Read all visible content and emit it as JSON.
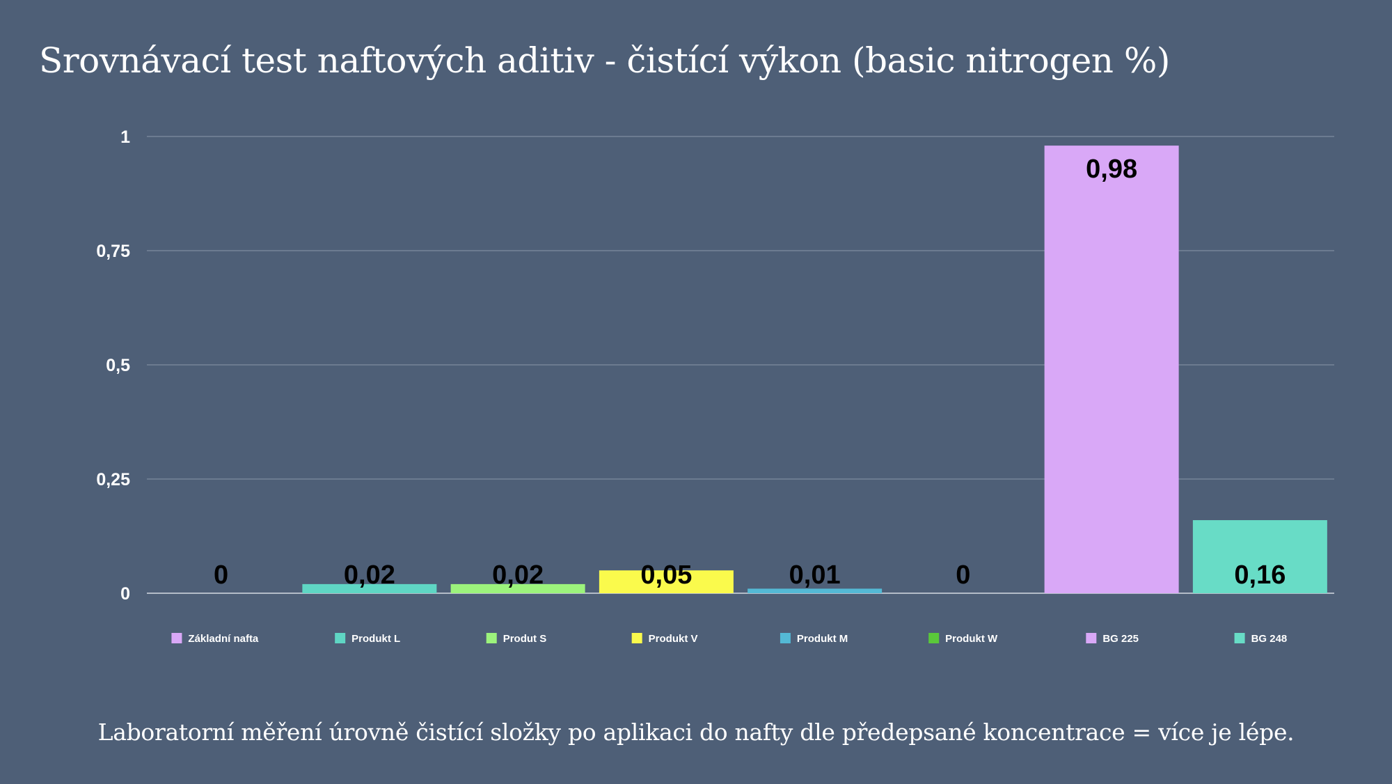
{
  "chart_data": {
    "type": "bar",
    "title": "Srovnávací test naftových aditiv - čistící výkon (basic nitrogen %)",
    "xlabel": "",
    "ylabel": "",
    "ylim": [
      0,
      1
    ],
    "yticks": [
      "0",
      "0,25",
      "0,5",
      "0,75",
      "1"
    ],
    "ytick_values": [
      0,
      0.25,
      0.5,
      0.75,
      1
    ],
    "grid": true,
    "legend_position": "bottom",
    "categories": [
      "Základní nafta",
      "Produkt L",
      "Produt S",
      "Produkt V",
      "Produkt M",
      "Produkt W",
      "BG 225",
      "BG 248"
    ],
    "values": [
      0,
      0.02,
      0.02,
      0.05,
      0.01,
      0,
      0.98,
      0.16
    ],
    "value_labels": [
      "0",
      "0,02",
      "0,02",
      "0,05",
      "0,01",
      "0",
      "0,98",
      "0,16"
    ],
    "colors": [
      "#d9a8f7",
      "#5fd6c4",
      "#9cf37c",
      "#fafa4c",
      "#54b9d5",
      "#5ac83a",
      "#d9a8f7",
      "#68dcc6"
    ]
  },
  "footnote": "Laboratorní měření úrovně čistící složky po aplikaci do nafty dle předepsané koncentrace = více je lépe."
}
